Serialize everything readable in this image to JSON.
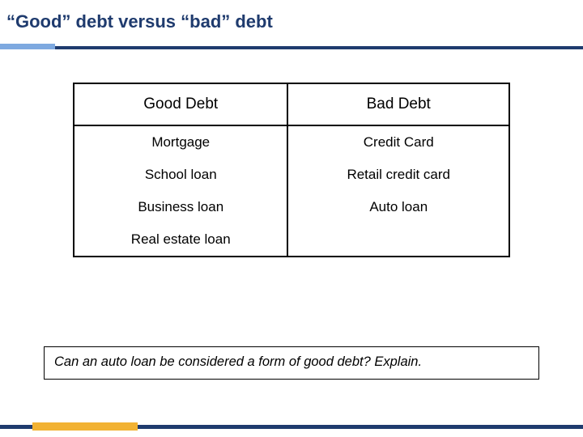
{
  "title": "“Good” debt versus “bad” debt",
  "colors": {
    "title_text": "#1f3b6e",
    "underline_dark": "#1f3b6e",
    "underline_light": "#7ea9e0",
    "table_border": "#000000",
    "footer_blue": "#1f3b6e",
    "footer_accent": "#f2b233",
    "background": "#ffffff"
  },
  "table": {
    "columns": [
      "Good Debt",
      "Bad Debt"
    ],
    "rows": [
      [
        "Mortgage",
        "Credit Card"
      ],
      [
        "School loan",
        "Retail credit card"
      ],
      [
        "Business loan",
        "Auto loan"
      ],
      [
        "Real estate loan",
        ""
      ]
    ]
  },
  "question": "Can an auto loan be considered a form of good debt? Explain."
}
